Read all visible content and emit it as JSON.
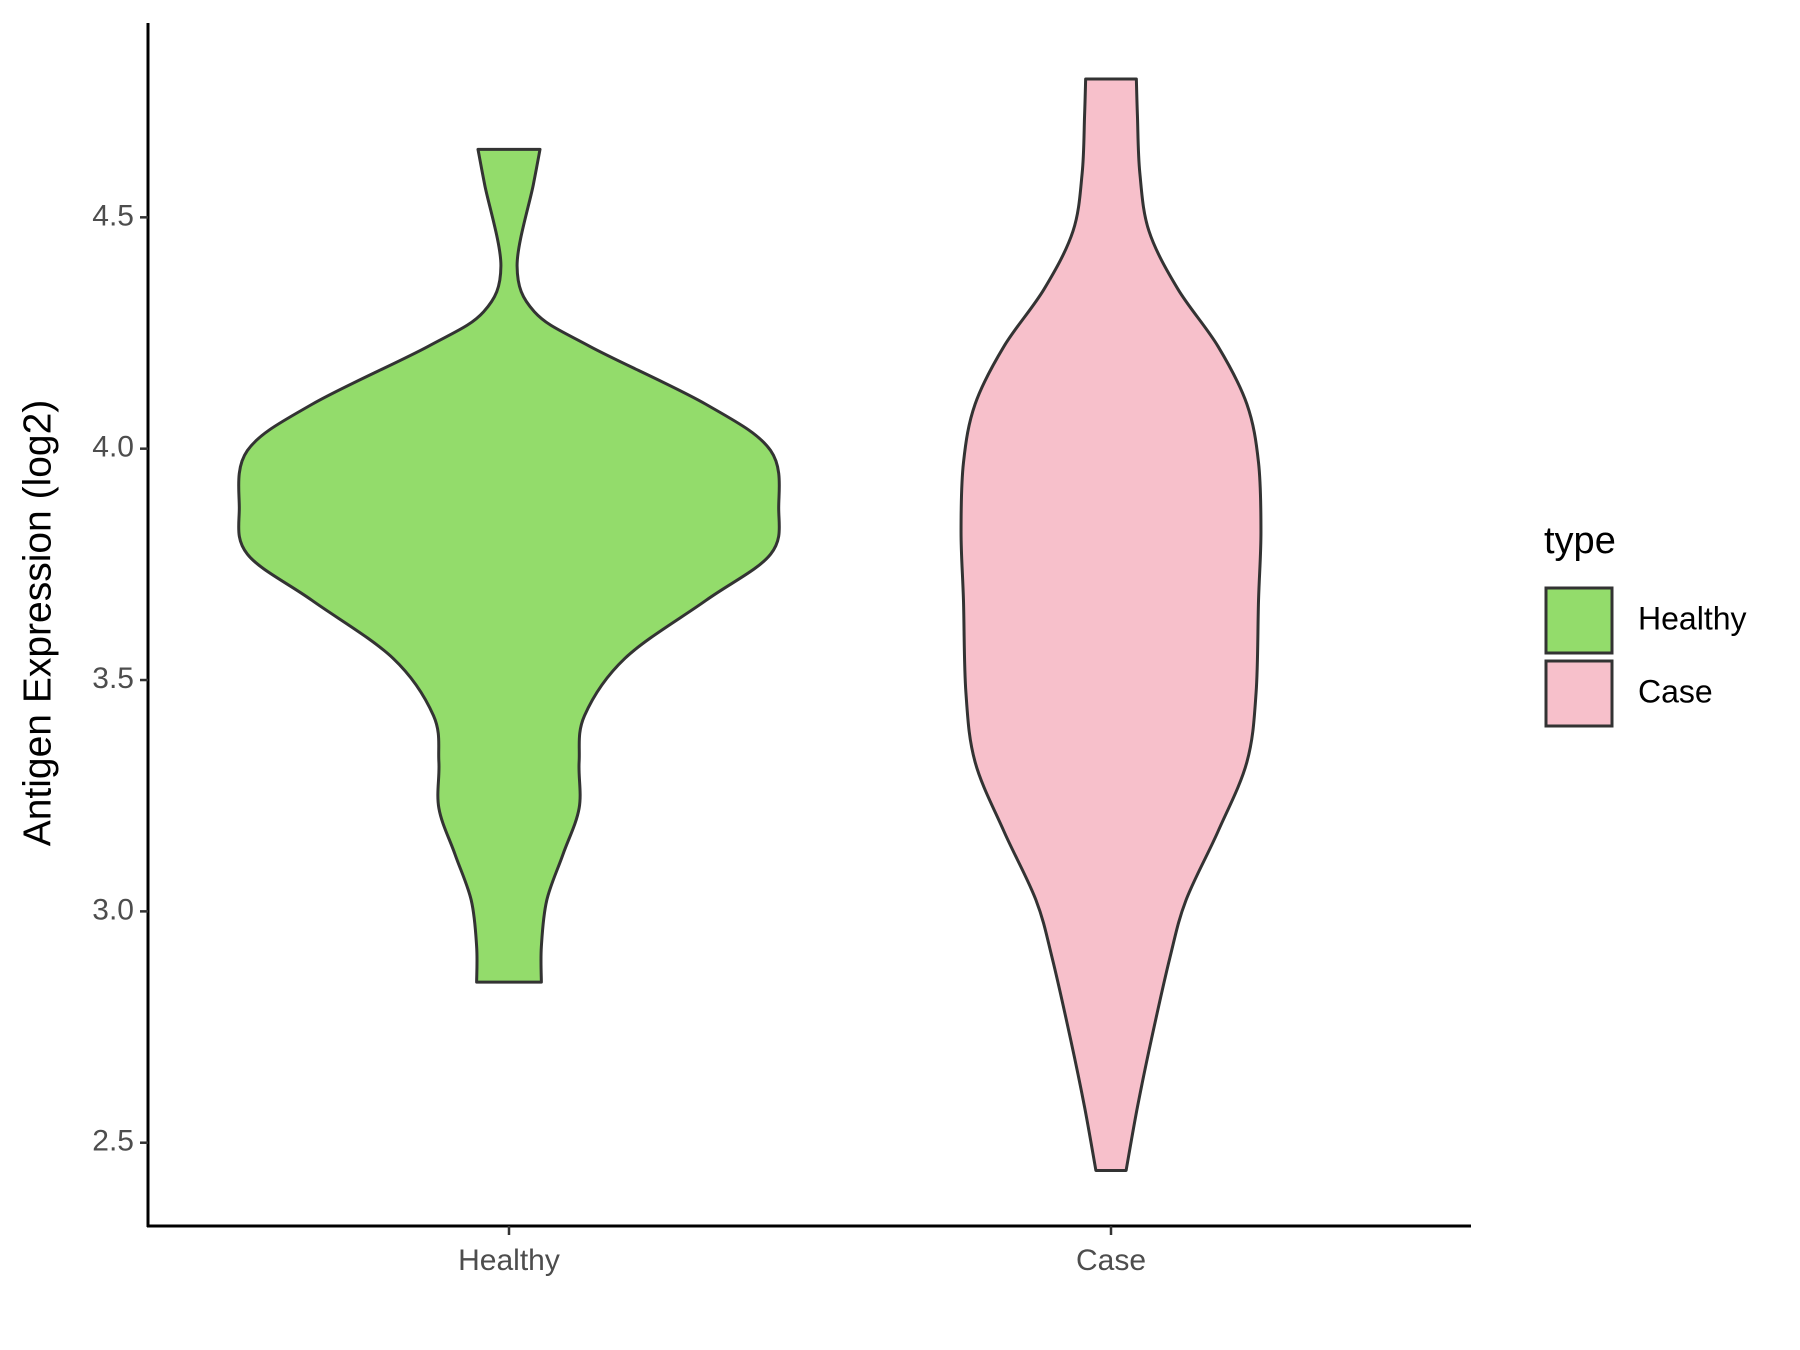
{
  "chart_data": {
    "type": "violin",
    "y_label": "Antigen Expression (log2)",
    "categories": [
      "Healthy",
      "Case"
    ],
    "ylim": [
      2.32,
      4.92
    ],
    "yticks": [
      2.5,
      {
        "value": 3,
        "label": "3.0"
      },
      3.5,
      {
        "value": 4,
        "label": "4.0"
      },
      4.5
    ],
    "legend_title": "type",
    "legend_position": "right",
    "series": [
      {
        "name": "Healthy",
        "color": "#93dc6b",
        "y": [
          4.647,
          4.57,
          4.395,
          4.296,
          4.221,
          4.096,
          3.996,
          3.872,
          3.772,
          3.672,
          3.547,
          3.423,
          3.323,
          3.223,
          3.123,
          3.024,
          2.924,
          2.847
        ],
        "density": [
          0.115,
          0.09,
          0.03,
          0.094,
          0.3,
          0.73,
          0.97,
          1.0,
          0.97,
          0.73,
          0.43,
          0.28,
          0.26,
          0.26,
          0.2,
          0.14,
          0.12,
          0.12
        ]
      },
      {
        "name": "Case",
        "color": "#f7c0cb",
        "y": [
          4.799,
          4.72,
          4.595,
          4.47,
          4.345,
          4.221,
          4.096,
          3.97,
          3.82,
          3.672,
          3.473,
          3.323,
          3.173,
          3.024,
          2.899,
          2.724,
          2.577,
          2.44
        ],
        "density": [
          0.094,
          0.098,
          0.107,
          0.141,
          0.248,
          0.397,
          0.504,
          0.547,
          0.556,
          0.547,
          0.538,
          0.504,
          0.397,
          0.278,
          0.218,
          0.15,
          0.098,
          0.056
        ]
      }
    ]
  }
}
